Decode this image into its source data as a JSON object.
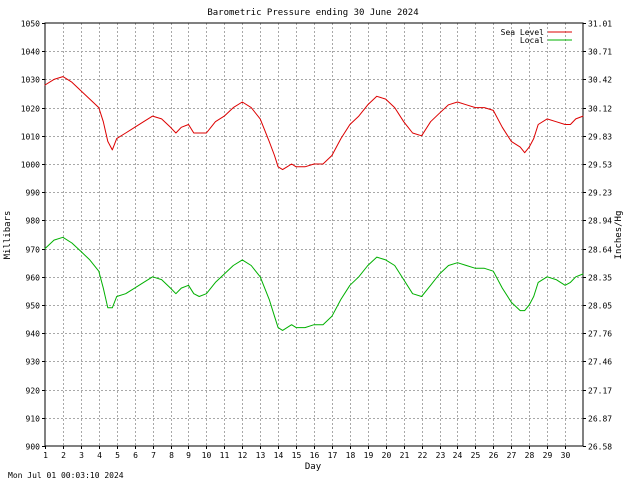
{
  "footer": {
    "timestamp": "Mon Jul 01 00:03:10 2024"
  },
  "chart_data": {
    "type": "line",
    "title": "Barometric Pressure ending 30 June 2024",
    "xlabel": "Day",
    "ylabel": "Millibars",
    "ylabel_right": "Inches/Hg",
    "xlim": [
      1,
      31
    ],
    "ylim": [
      900,
      1050
    ],
    "ylim_right": [
      26.58,
      31.01
    ],
    "x_ticks": [
      "1",
      "2",
      "3",
      "4",
      "5",
      "6",
      "7",
      "8",
      "9",
      "10",
      "11",
      "12",
      "13",
      "14",
      "15",
      "16",
      "17",
      "18",
      "19",
      "20",
      "21",
      "22",
      "23",
      "24",
      "25",
      "26",
      "27",
      "28",
      "29",
      "30"
    ],
    "y_ticks_left": [
      "900",
      "910",
      "920",
      "930",
      "940",
      "950",
      "960",
      "970",
      "980",
      "990",
      "1000",
      "1010",
      "1020",
      "1030",
      "1040",
      "1050"
    ],
    "y_ticks_right": [
      "26.58",
      "26.87",
      "27.17",
      "27.46",
      "27.76",
      "28.05",
      "28.35",
      "28.64",
      "28.94",
      "29.23",
      "29.53",
      "29.83",
      "30.12",
      "30.42",
      "30.71",
      "31.01"
    ],
    "grid": true,
    "legend_position": "top-right",
    "colors": {
      "sea_level": "#dd0000",
      "local": "#00b000"
    },
    "series": [
      {
        "name": "Sea Level",
        "color": "#dd0000",
        "x": [
          1,
          1.5,
          2,
          2.5,
          3,
          3.5,
          4,
          4.25,
          4.5,
          4.75,
          5,
          5.5,
          6,
          6.5,
          7,
          7.5,
          8,
          8.3,
          8.6,
          9,
          9.3,
          9.6,
          10,
          10.5,
          11,
          11.5,
          12,
          12.5,
          13,
          13.5,
          13.8,
          14,
          14.25,
          14.5,
          14.75,
          15,
          15.5,
          16,
          16.5,
          17,
          17.5,
          18,
          18.5,
          19,
          19.5,
          20,
          20.5,
          21,
          21.5,
          22,
          22.5,
          23,
          23.5,
          24,
          24.5,
          25,
          25.5,
          26,
          26.5,
          27,
          27.5,
          27.75,
          28,
          28.25,
          28.5,
          29,
          29.5,
          30,
          30.3,
          30.6,
          31
        ],
        "values": [
          1028,
          1030,
          1031,
          1029,
          1026,
          1023,
          1020,
          1015,
          1008,
          1005,
          1009,
          1011,
          1013,
          1015,
          1017,
          1016,
          1013,
          1011,
          1013,
          1014,
          1011,
          1011,
          1011,
          1015,
          1017,
          1020,
          1022,
          1020,
          1016,
          1008,
          1003,
          999,
          998,
          999,
          1000,
          999,
          999,
          1000,
          1000,
          1003,
          1009,
          1014,
          1017,
          1021,
          1024,
          1023,
          1020,
          1015,
          1011,
          1010,
          1015,
          1018,
          1021,
          1022,
          1021,
          1020,
          1020,
          1019,
          1013,
          1008,
          1006,
          1004,
          1006,
          1009,
          1014,
          1016,
          1015,
          1014,
          1014,
          1016,
          1017
        ]
      },
      {
        "name": "Local",
        "color": "#00b000",
        "x": [
          1,
          1.5,
          2,
          2.5,
          3,
          3.5,
          4,
          4.25,
          4.5,
          4.75,
          5,
          5.5,
          6,
          6.5,
          7,
          7.5,
          8,
          8.3,
          8.6,
          9,
          9.3,
          9.6,
          10,
          10.5,
          11,
          11.5,
          12,
          12.5,
          13,
          13.5,
          13.8,
          14,
          14.25,
          14.5,
          14.75,
          15,
          15.5,
          16,
          16.5,
          17,
          17.5,
          18,
          18.5,
          19,
          19.5,
          20,
          20.5,
          21,
          21.5,
          22,
          22.5,
          23,
          23.5,
          24,
          24.5,
          25,
          25.5,
          26,
          26.5,
          27,
          27.5,
          27.75,
          28,
          28.25,
          28.5,
          29,
          29.5,
          30,
          30.3,
          30.6,
          31
        ],
        "values": [
          970,
          973,
          974,
          972,
          969,
          966,
          962,
          956,
          949,
          949,
          953,
          954,
          956,
          958,
          960,
          959,
          956,
          954,
          956,
          957,
          954,
          953,
          954,
          958,
          961,
          964,
          966,
          964,
          960,
          952,
          946,
          942,
          941,
          942,
          943,
          942,
          942,
          943,
          943,
          946,
          952,
          957,
          960,
          964,
          967,
          966,
          964,
          959,
          954,
          953,
          957,
          961,
          964,
          965,
          964,
          963,
          963,
          962,
          956,
          951,
          948,
          948,
          950,
          953,
          958,
          960,
          959,
          957,
          958,
          960,
          961
        ]
      }
    ]
  }
}
